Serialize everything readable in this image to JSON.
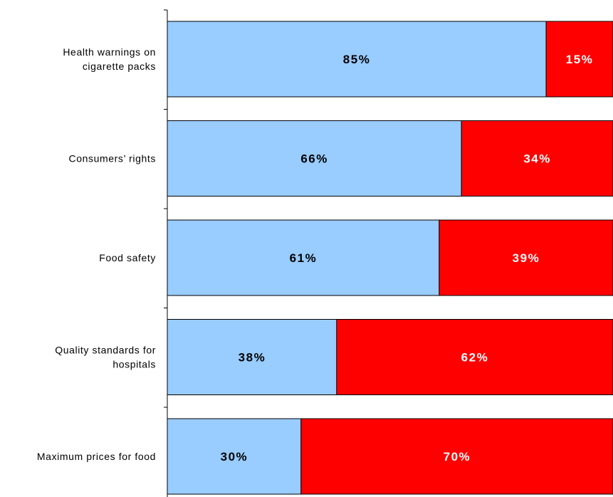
{
  "chart_data": {
    "type": "bar",
    "orientation": "horizontal",
    "stacked": true,
    "categories": [
      [
        "Health warnings on",
        "cigarette packs"
      ],
      [
        "Consumers’ rights"
      ],
      [
        "Food safety"
      ],
      [
        "Quality standards for",
        "hospitals"
      ],
      [
        "Maximum prices for food"
      ]
    ],
    "series": [
      {
        "values": [
          85,
          66,
          61,
          38,
          30
        ],
        "labels": [
          "85%",
          "66%",
          "61%",
          "38%",
          "30%"
        ],
        "color": "#99ccff",
        "label_color": "#000000"
      },
      {
        "values": [
          15,
          34,
          39,
          62,
          70
        ],
        "labels": [
          "15%",
          "34%",
          "39%",
          "62%",
          "70%"
        ],
        "color": "#ff0000",
        "label_color": "#ffffff"
      }
    ],
    "xlim": [
      0,
      100
    ],
    "grid": false,
    "legend": "none"
  }
}
